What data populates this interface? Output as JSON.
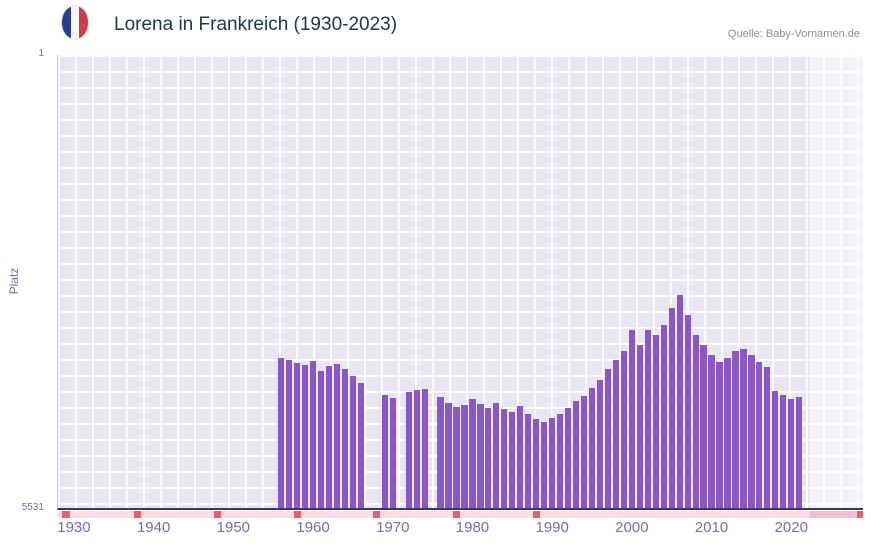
{
  "header": {
    "title": "Lorena in Frankreich (1930-2023)",
    "source": "Quelle: Baby-Vornamen.de",
    "flag_icon": "france-flag-icon"
  },
  "colors": {
    "bar": "#8b57c5",
    "plot_bg": "#eae5f3",
    "axis_line": "#41306b",
    "tick_text": "#7e68b2",
    "title_text": "#203849",
    "source_text": "#8e8e8e",
    "strip_bg": "#f8dde3",
    "strip_marker": "#e4606e",
    "strip_recent": "#f0c0cb",
    "flag_blue": "#2b3f90",
    "flag_white": "#f5f5f5",
    "flag_red": "#cf3d47"
  },
  "chart_data": {
    "type": "bar",
    "title": "Lorena in Frankreich (1930-2023)",
    "ylabel": "Platz",
    "y_top_label": "1",
    "y_bottom_label": "5531",
    "y_min": 1,
    "y_max": 5531,
    "y_inverted": true,
    "grid": true,
    "x_range": [
      1928,
      2029
    ],
    "x_tick_years": [
      1930,
      1940,
      1950,
      1960,
      1970,
      1980,
      1990,
      2000,
      2010,
      2020
    ],
    "start_year": 1930,
    "end_year": 2023,
    "ranks": [
      null,
      null,
      null,
      null,
      null,
      null,
      null,
      null,
      null,
      null,
      null,
      null,
      null,
      null,
      null,
      null,
      null,
      null,
      null,
      null,
      null,
      null,
      null,
      null,
      null,
      null,
      3700,
      3730,
      3760,
      3790,
      3740,
      3860,
      3800,
      3770,
      3830,
      3920,
      4000,
      null,
      null,
      4150,
      4190,
      null,
      4110,
      4090,
      4080,
      null,
      4170,
      4250,
      4300,
      4270,
      4200,
      4260,
      4310,
      4250,
      4320,
      4360,
      4280,
      4380,
      4450,
      4480,
      4430,
      4380,
      4310,
      4230,
      4160,
      4060,
      3970,
      3840,
      3720,
      3620,
      3360,
      3540,
      3360,
      3420,
      3300,
      3090,
      2930,
      3180,
      3420,
      3540,
      3660,
      3750,
      3700,
      3620,
      3590,
      3660,
      3750,
      3810,
      4100,
      4150,
      4200,
      4170,
      null,
      null
    ],
    "missing_marker_years": [
      1929,
      1938,
      1948,
      1958,
      1968,
      1978,
      1988
    ],
    "recent_band_start": 2022.4
  }
}
